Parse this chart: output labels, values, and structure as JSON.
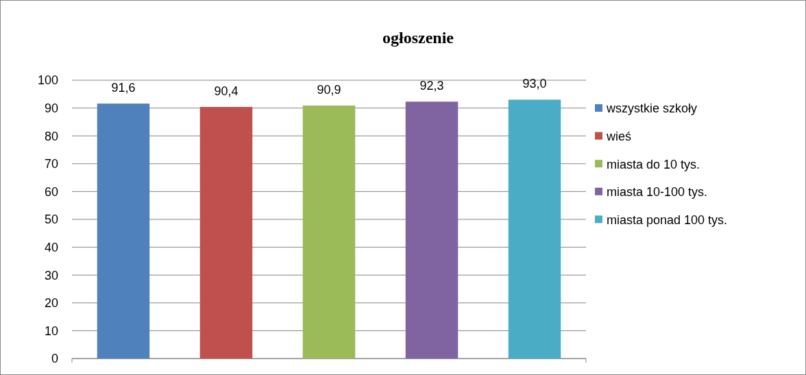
{
  "chart_data": {
    "type": "bar",
    "title": "ogłoszenie",
    "categories": [
      null
    ],
    "series": [
      {
        "name": "wszystkie szkoły",
        "color": "#4f81bd",
        "values": [
          91.6
        ]
      },
      {
        "name": "wieś",
        "color": "#c0504d",
        "values": [
          90.4
        ]
      },
      {
        "name": "miasta do 10 tys.",
        "color": "#9bbb59",
        "values": [
          90.9
        ]
      },
      {
        "name": "miasta 10-100 tys.",
        "color": "#8064a2",
        "values": [
          92.3
        ]
      },
      {
        "name": "miasta ponad 100 tys.",
        "color": "#4bacc6",
        "values": [
          93.0
        ]
      }
    ],
    "value_labels": [
      "91,6",
      "90,4",
      "90,9",
      "92,3",
      "93,0"
    ],
    "ylim": [
      0,
      100
    ],
    "yticks": [
      0,
      10,
      20,
      30,
      40,
      50,
      60,
      70,
      80,
      90,
      100
    ],
    "grid": "y",
    "legend": "right"
  }
}
